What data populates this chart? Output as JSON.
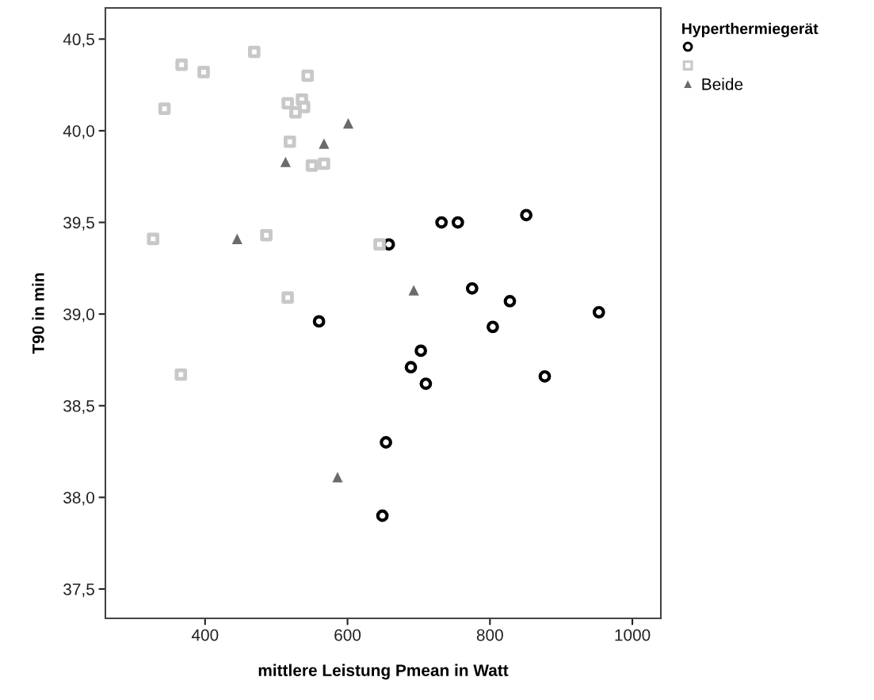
{
  "chart_data": {
    "type": "scatter",
    "xlabel": "mittlere Leistung Pmean in Watt",
    "ylabel": "T90 in min",
    "legend_title": "Hyperthermiegerät",
    "legend": "right",
    "grid": false,
    "xlim": [
      260,
      1040
    ],
    "ylim": [
      37.34,
      40.67
    ],
    "xticks": [
      400,
      600,
      800,
      1000
    ],
    "yticks": [
      {
        "value": 37.5,
        "label": "37,5"
      },
      {
        "value": 38.0,
        "label": "38,0"
      },
      {
        "value": 38.5,
        "label": "38,5"
      },
      {
        "value": 39.0,
        "label": "39,0"
      },
      {
        "value": 39.5,
        "label": "39,5"
      },
      {
        "value": 40.0,
        "label": "40,0"
      },
      {
        "value": 40.5,
        "label": "40,5"
      }
    ],
    "series": [
      {
        "color": "#000000",
        "marker": "circle",
        "x": [
          658,
          732,
          755,
          851,
          775,
          828,
          953,
          804,
          560,
          703,
          689,
          710,
          877,
          654,
          649
        ],
        "values": [
          39.38,
          39.5,
          39.5,
          39.54,
          39.14,
          39.07,
          39.01,
          38.93,
          38.96,
          38.8,
          38.71,
          38.62,
          38.66,
          38.3,
          37.9
        ]
      },
      {
        "color": "#c8c8c8",
        "marker": "square",
        "x": [
          469,
          367,
          398,
          544,
          343,
          516,
          536,
          539,
          527,
          519,
          550,
          567,
          327,
          486,
          645,
          516,
          366
        ],
        "values": [
          40.43,
          40.36,
          40.32,
          40.3,
          40.12,
          40.15,
          40.17,
          40.13,
          40.1,
          39.94,
          39.81,
          39.82,
          39.41,
          39.43,
          39.38,
          39.09,
          38.67
        ]
      },
      {
        "name": "Beide",
        "color": "#6b6b6b",
        "marker": "triangle",
        "x": [
          601,
          567,
          513,
          445,
          693,
          586
        ],
        "values": [
          40.04,
          39.93,
          39.83,
          39.41,
          39.13,
          38.11
        ]
      }
    ]
  }
}
